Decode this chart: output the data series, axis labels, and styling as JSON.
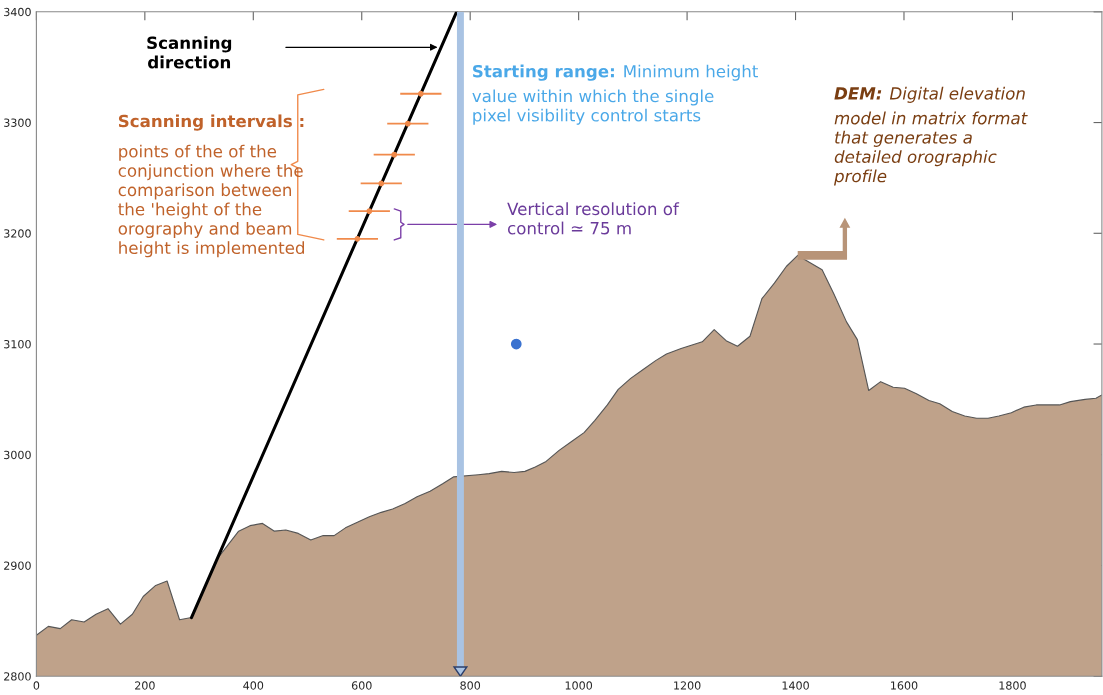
{
  "chart_data": {
    "type": "area",
    "xlim": [
      0,
      1965
    ],
    "ylim": [
      2800,
      3400
    ],
    "xticks": [
      0,
      200,
      400,
      600,
      800,
      1000,
      1200,
      1400,
      1600,
      1800
    ],
    "yticks": [
      2800,
      2900,
      3000,
      3100,
      3200,
      3300,
      3400
    ],
    "grid": false,
    "series": [
      {
        "color": "#bfa28a",
        "x": [
          0,
          22,
          44,
          65,
          88,
          110,
          132,
          155,
          177,
          197,
          220,
          241,
          264,
          286,
          332,
          373,
          394,
          417,
          439,
          460,
          483,
          506,
          529,
          549,
          570,
          592,
          614,
          636,
          657,
          680,
          702,
          726,
          750,
          769,
          815,
          835,
          858,
          881,
          901,
          920,
          940,
          964,
          987,
          1010,
          1030,
          1053,
          1073,
          1096,
          1119,
          1142,
          1162,
          1189,
          1228,
          1250,
          1272,
          1293,
          1316,
          1338,
          1361,
          1383,
          1404,
          1449,
          1471,
          1494,
          1514,
          1535,
          1557,
          1580,
          1601,
          1623,
          1646,
          1666,
          1689,
          1712,
          1734,
          1755,
          1775,
          1798,
          1821,
          1844,
          1887,
          1907,
          1934,
          1954,
          1965
        ],
        "values": [
          2837,
          2845,
          2843,
          2851,
          2849,
          2856,
          2861,
          2847,
          2856,
          2872,
          2882,
          2886,
          2851,
          2853,
          2905,
          2931,
          2936,
          2938,
          2931,
          2932,
          2929,
          2923,
          2927,
          2927,
          2934,
          2939,
          2944,
          2948,
          2951,
          2956,
          2962,
          2967,
          2974,
          2980,
          2982,
          2983,
          2985,
          2984,
          2985,
          2989,
          2994,
          3004,
          3012,
          3020,
          3031,
          3045,
          3059,
          3069,
          3077,
          3085,
          3091,
          3096,
          3102,
          3113,
          3103,
          3098,
          3107,
          3141,
          3155,
          3170,
          3180,
          3167,
          3145,
          3120,
          3104,
          3058,
          3066,
          3061,
          3060,
          3055,
          3049,
          3046,
          3039,
          3035,
          3033,
          3033,
          3035,
          3038,
          3043,
          3045,
          3045,
          3048,
          3050,
          3051,
          3054
        ]
      },
      {
        "type": "line",
        "color": "#000000",
        "x": [
          286,
          775
        ],
        "values": [
          2853,
          3400
        ]
      },
      {
        "type": "scatter",
        "color": "#f08a4b",
        "x": [
          592,
          614,
          636,
          660,
          685,
          709
        ],
        "values": [
          3195,
          3220,
          3245,
          3271,
          3299,
          3326
        ],
        "xerrors": [
          38,
          38,
          38,
          38,
          38,
          38
        ]
      },
      {
        "type": "scatter",
        "color": "#3a72d0",
        "marker": "circle",
        "x": [
          885
        ],
        "values": [
          3100
        ]
      }
    ],
    "ref_lines": [
      {
        "axis": "x",
        "value": 782,
        "color": "#a9c3e3"
      }
    ],
    "annotations": [
      "Scanning\ndirection",
      "Scanning intervals :",
      "points of the of the\nconjunction where the\ncomparison between\nthe 'height of the\norography and beam\nheight is implemented",
      "Starting range:",
      "Minimum height\nvalue within which the single\npixel visibility control starts",
      "Vertical resolution of\ncontrol ≃ 75 m",
      "DEM:",
      "Digital elevation\nmodel in matrix format\nthat generates a\ndetailed orographic\nprofile"
    ]
  }
}
